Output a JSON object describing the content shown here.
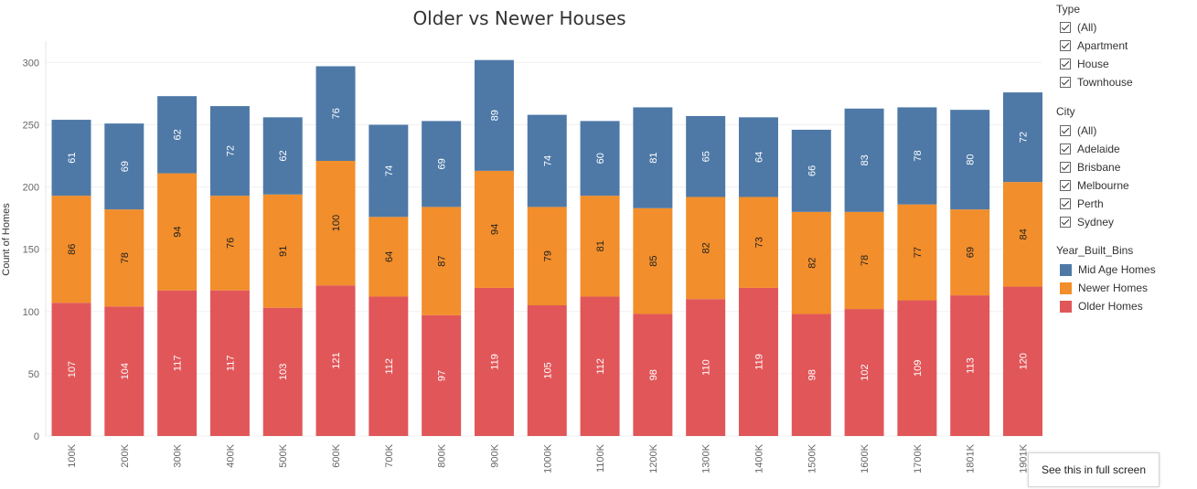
{
  "chart_data": {
    "type": "bar",
    "stacked": true,
    "title": "Older vs Newer Houses",
    "ylabel": "Count of Homes",
    "xlabel": "",
    "ylim": [
      0,
      320
    ],
    "yticks": [
      0,
      50,
      100,
      150,
      200,
      250,
      300
    ],
    "grid": true,
    "categories": [
      "100K",
      "200K",
      "300K",
      "400K",
      "500K",
      "600K",
      "700K",
      "800K",
      "900K",
      "1000K",
      "1100K",
      "1200K",
      "1300K",
      "1400K",
      "1500K",
      "1600K",
      "1700K",
      "1801K",
      "1901K"
    ],
    "series": [
      {
        "name": "Older Homes",
        "color": "#e15759",
        "values": [
          107,
          104,
          117,
          117,
          103,
          121,
          112,
          97,
          119,
          105,
          112,
          98,
          110,
          119,
          98,
          102,
          109,
          113,
          120
        ]
      },
      {
        "name": "Newer Homes",
        "color": "#f28e2b",
        "values": [
          86,
          78,
          94,
          76,
          91,
          100,
          64,
          87,
          94,
          79,
          81,
          85,
          82,
          73,
          82,
          78,
          77,
          69,
          84
        ]
      },
      {
        "name": "Mid Age Homes",
        "color": "#4e79a7",
        "values": [
          61,
          69,
          62,
          72,
          62,
          76,
          74,
          69,
          89,
          74,
          60,
          81,
          65,
          64,
          66,
          83,
          78,
          80,
          72
        ]
      }
    ]
  },
  "filters": [
    {
      "title": "Type",
      "items": [
        "(All)",
        "Apartment",
        "House",
        "Townhouse"
      ]
    },
    {
      "title": "City",
      "items": [
        "(All)",
        "Adelaide",
        "Brisbane",
        "Melbourne",
        "Perth",
        "Sydney"
      ]
    }
  ],
  "legend": {
    "title": "Year_Built_Bins",
    "items": [
      {
        "label": "Mid Age Homes",
        "color": "#4e79a7"
      },
      {
        "label": "Newer Homes",
        "color": "#f28e2b"
      },
      {
        "label": "Older Homes",
        "color": "#e15759"
      }
    ]
  },
  "fullscreen_label": "See this in full screen"
}
